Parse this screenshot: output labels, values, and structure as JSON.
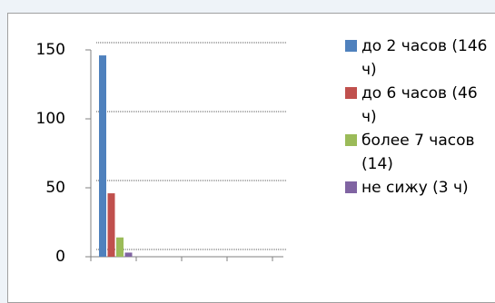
{
  "chart_data": {
    "type": "bar",
    "series": [
      {
        "name": "до 2 часов (146 ч)",
        "color": "#4f81bd",
        "values": [
          146
        ]
      },
      {
        "name": "до 6 часов (46 ч)",
        "color": "#c0504d",
        "values": [
          46
        ]
      },
      {
        "name": "более 7 часов (14)",
        "color": "#9bbb59",
        "values": [
          14
        ]
      },
      {
        "name": "не сижу (3 ч)",
        "color": "#8064a2",
        "values": [
          3
        ]
      }
    ],
    "ylim": [
      0,
      150
    ],
    "yticks": [
      0,
      50,
      100,
      150
    ],
    "grid": true,
    "legend": "right"
  }
}
